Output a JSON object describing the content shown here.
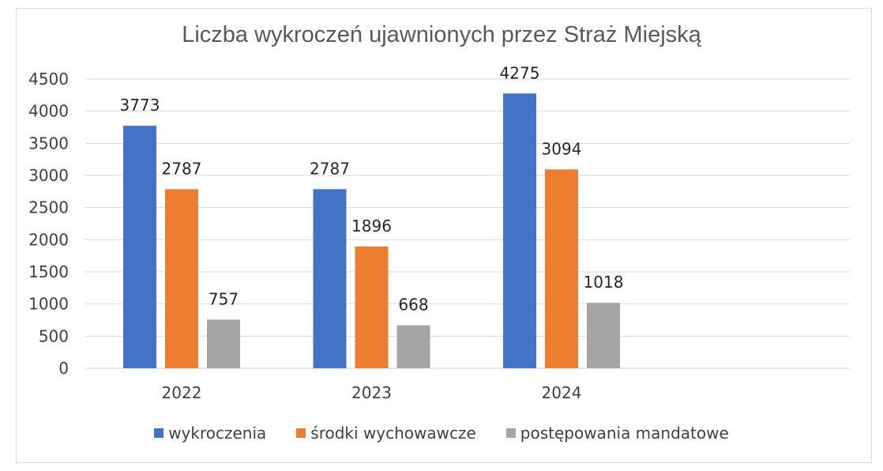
{
  "chart_data": {
    "type": "bar",
    "title": "Liczba wykroczeń ujawnionych przez Straż Miejską",
    "xlabel": "",
    "ylabel": "",
    "categories": [
      "2022",
      "2023",
      "2024"
    ],
    "series": [
      {
        "name": "wykroczenia",
        "values": [
          3773,
          2787,
          4275
        ],
        "color": "#4472c4"
      },
      {
        "name": "środki wychowawcze",
        "values": [
          2787,
          1896,
          3094
        ],
        "color": "#ed7d31"
      },
      {
        "name": "postępowania mandatowe",
        "values": [
          757,
          668,
          1018
        ],
        "color": "#a5a5a5"
      }
    ],
    "ylim": [
      0,
      4500
    ],
    "yticks": [
      "0",
      "500",
      "1000",
      "1500",
      "2000",
      "2500",
      "3000",
      "3500",
      "4000",
      "4500"
    ],
    "grid": true,
    "legend_position": "bottom",
    "data_labels": true
  }
}
